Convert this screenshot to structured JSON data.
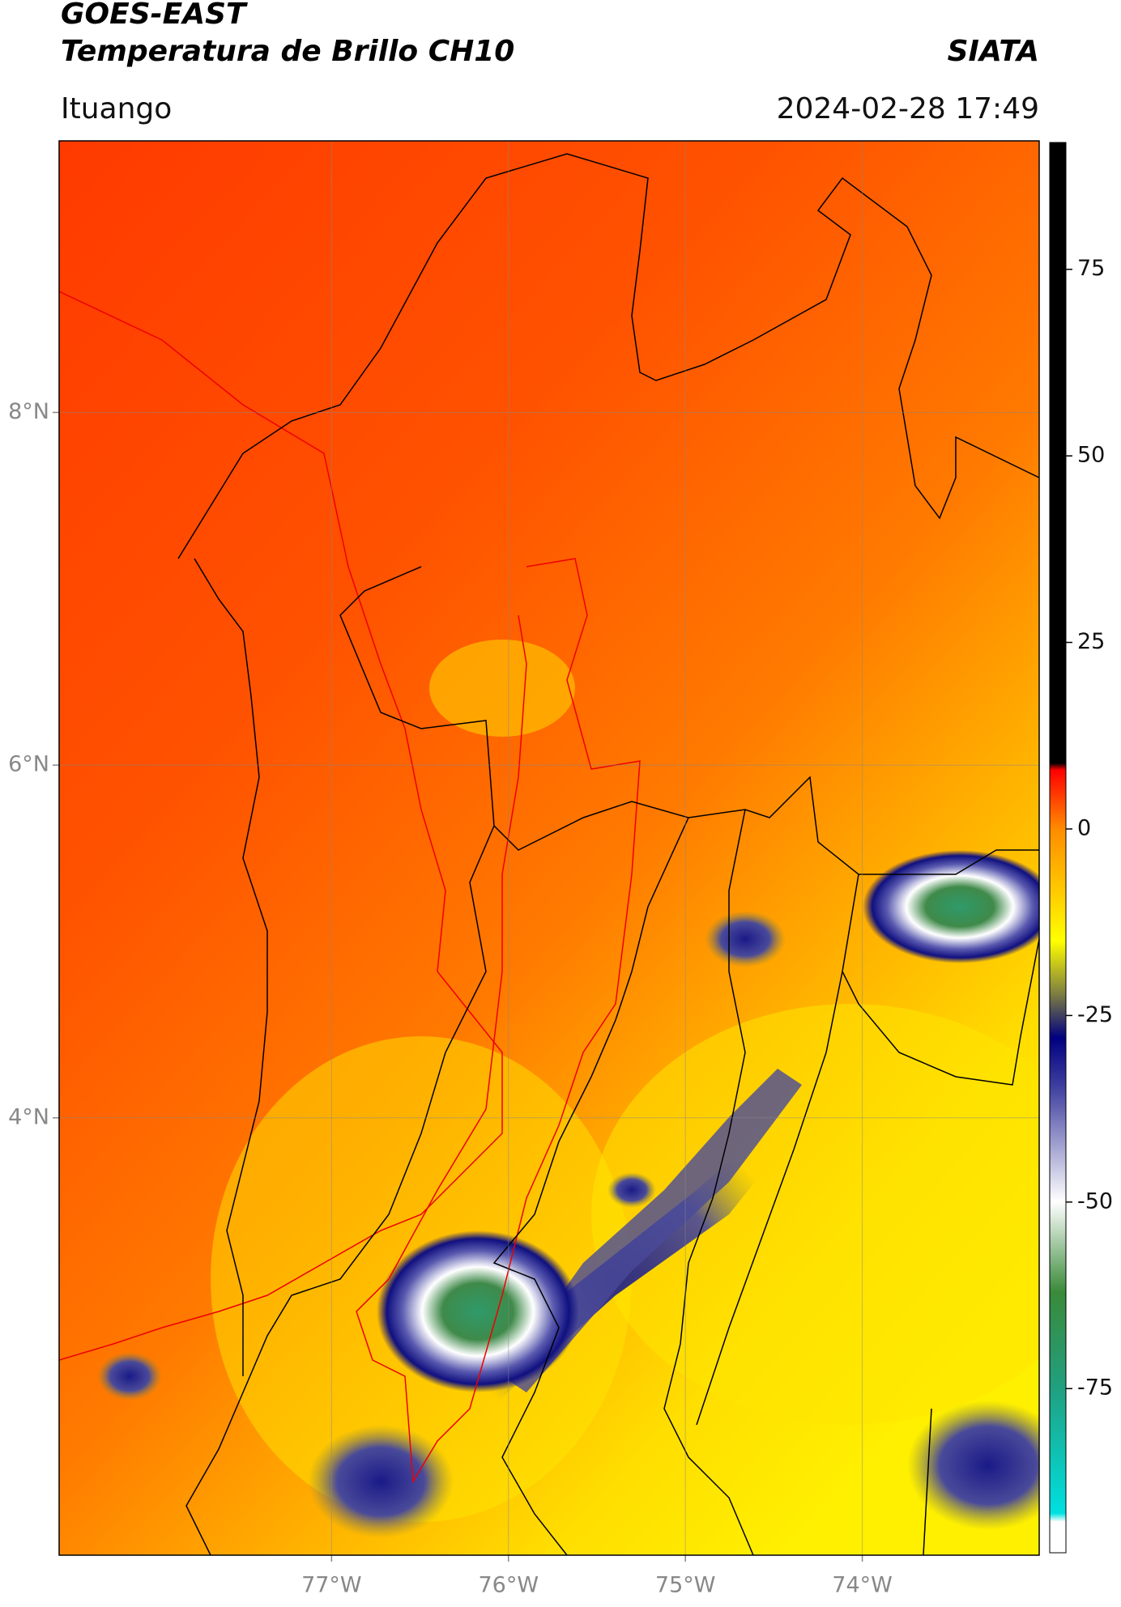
{
  "header": {
    "title": "GOES-EAST",
    "subtitle": "Temperatura de Brillo CH10",
    "source": "SIATA",
    "location": "Ituango",
    "datetime": "2024-02-28 17:49"
  },
  "colorbar": {
    "range": [
      -97,
      92
    ],
    "ticks": [
      75,
      50,
      25,
      0,
      -25,
      -50,
      -75
    ]
  },
  "map": {
    "lat_range": [
      1.52,
      9.54
    ],
    "lon_range": [
      -78.54,
      -73.0
    ],
    "lat_ticks": [
      {
        "value": 8,
        "label": "8°N"
      },
      {
        "value": 6,
        "label": "6°N"
      },
      {
        "value": 4,
        "label": "4°N"
      }
    ],
    "lon_ticks": [
      {
        "value": -77,
        "label": "77°W"
      },
      {
        "value": -76,
        "label": "76°W"
      },
      {
        "value": -75,
        "label": "75°W"
      },
      {
        "value": -74,
        "label": "74°W"
      }
    ]
  }
}
